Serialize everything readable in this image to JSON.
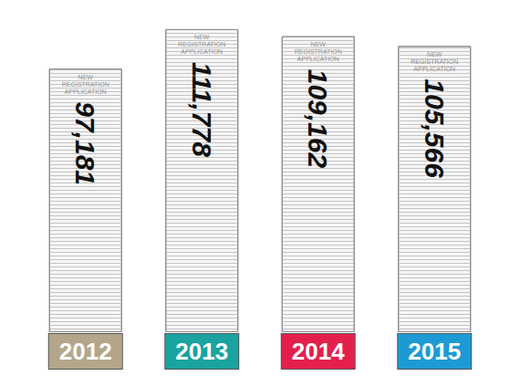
{
  "chart_data": {
    "type": "bar",
    "categories": [
      "2012",
      "2013",
      "2014",
      "2015"
    ],
    "values": [
      97181,
      111778,
      109162,
      105566
    ],
    "value_labels": [
      "97,181",
      "111,778",
      "109,162",
      "105,566"
    ],
    "colors": [
      "#b3a68a",
      "#1aa3a0",
      "#e3204d",
      "#1d9ad6"
    ],
    "annotation": "NEW REGISTRATION APPLICATION",
    "data_labels": true,
    "tick_labels": "x",
    "grid": false
  }
}
